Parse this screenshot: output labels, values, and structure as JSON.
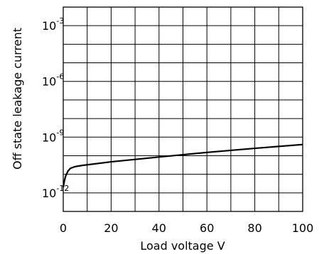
{
  "chart_data": {
    "type": "line",
    "title": "",
    "xlabel": "Load voltage V",
    "ylabel": "Off state leakage current",
    "xlim": [
      0,
      100
    ],
    "ylim_exponent": [
      -13,
      -2
    ],
    "y_scale": "log",
    "grid": true,
    "legend": "none",
    "x_ticks": [
      0,
      20,
      40,
      60,
      80,
      100
    ],
    "y_ticks": [
      {
        "base": "10",
        "exponent": "-12",
        "value": 1e-12
      },
      {
        "base": "10",
        "exponent": "-9",
        "value": 1e-09
      },
      {
        "base": "10",
        "exponent": "-6",
        "value": 1e-06
      },
      {
        "base": "10",
        "exponent": "-3",
        "value": 0.001
      }
    ],
    "series": [
      {
        "points": [
          {
            "x": 0,
            "y": 2e-12
          },
          {
            "x": 0.5,
            "y": 4.5e-12
          },
          {
            "x": 1,
            "y": 8e-12
          },
          {
            "x": 2,
            "y": 1.5e-11
          },
          {
            "x": 3,
            "y": 2.1e-11
          },
          {
            "x": 5,
            "y": 2.6e-11
          },
          {
            "x": 8,
            "y": 3e-11
          },
          {
            "x": 20,
            "y": 4.7e-11
          },
          {
            "x": 40,
            "y": 8.5e-11
          },
          {
            "x": 60,
            "y": 1.5e-10
          },
          {
            "x": 80,
            "y": 2.5e-10
          },
          {
            "x": 100,
            "y": 4e-10
          }
        ]
      }
    ],
    "colors": {
      "line": "#000000",
      "grid": "#000000",
      "background": "#ffffff"
    }
  }
}
